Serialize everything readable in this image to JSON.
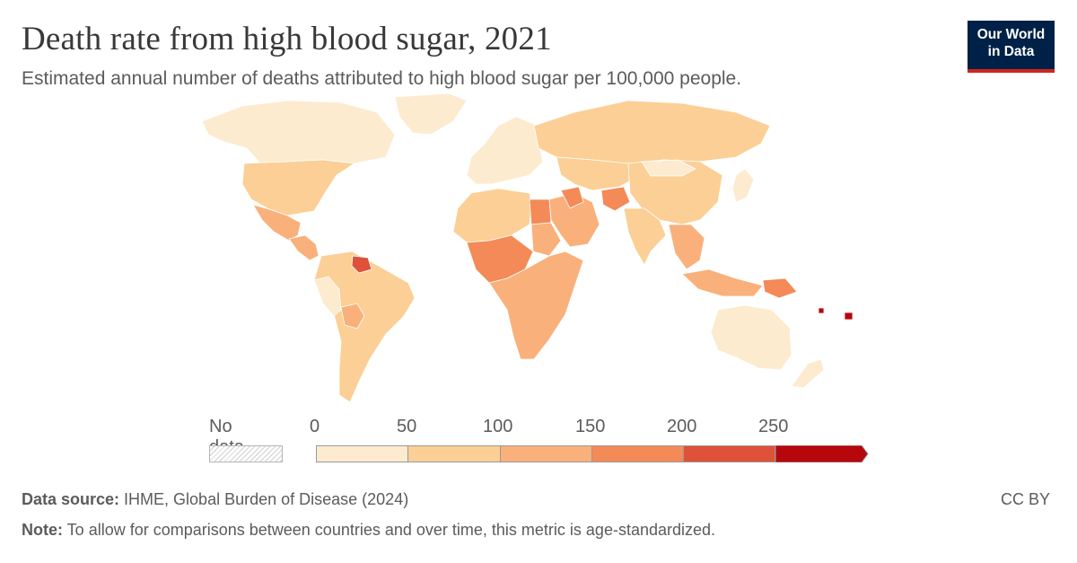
{
  "title": "Death rate from high blood sugar, 2021",
  "subtitle": "Estimated annual number of deaths attributed to high blood sugar per 100,000 people.",
  "logo": {
    "line1": "Our World",
    "line2": "in Data"
  },
  "legend": {
    "no_data_label": "No data",
    "bins": [
      {
        "from": 0,
        "to": 50,
        "color": "#fdebd0"
      },
      {
        "from": 50,
        "to": 100,
        "color": "#fbcf95"
      },
      {
        "from": 100,
        "to": 150,
        "color": "#f9b07b"
      },
      {
        "from": 150,
        "to": 200,
        "color": "#f48a57"
      },
      {
        "from": 200,
        "to": 250,
        "color": "#df5138"
      },
      {
        "from": 250,
        "to": null,
        "color": "#b5070c"
      }
    ],
    "tick_labels": [
      "0",
      "50",
      "100",
      "150",
      "200",
      "250"
    ]
  },
  "map": {
    "regions": [
      {
        "name": "Canada",
        "bin": 0
      },
      {
        "name": "Greenland",
        "bin": 0
      },
      {
        "name": "United States",
        "bin": 1
      },
      {
        "name": "Mexico",
        "bin": 2
      },
      {
        "name": "Central America",
        "bin": 2
      },
      {
        "name": "Guyana",
        "bin": 4
      },
      {
        "name": "South America",
        "bin": 1
      },
      {
        "name": "Peru",
        "bin": 0
      },
      {
        "name": "Bolivia",
        "bin": 2
      },
      {
        "name": "Europe",
        "bin": 0
      },
      {
        "name": "Russia",
        "bin": 1
      },
      {
        "name": "North Africa",
        "bin": 1
      },
      {
        "name": "Egypt",
        "bin": 3
      },
      {
        "name": "Sudan",
        "bin": 2
      },
      {
        "name": "Central Africa",
        "bin": 3
      },
      {
        "name": "Southern Africa",
        "bin": 2
      },
      {
        "name": "Middle East",
        "bin": 2
      },
      {
        "name": "Iraq",
        "bin": 3
      },
      {
        "name": "Afghanistan",
        "bin": 3
      },
      {
        "name": "Central Asia",
        "bin": 1
      },
      {
        "name": "China",
        "bin": 1
      },
      {
        "name": "Mongolia",
        "bin": 0
      },
      {
        "name": "India",
        "bin": 1
      },
      {
        "name": "Southeast Asia",
        "bin": 2
      },
      {
        "name": "Japan",
        "bin": 0
      },
      {
        "name": "Indonesia",
        "bin": 2
      },
      {
        "name": "Papua New Guinea",
        "bin": 3
      },
      {
        "name": "Australia",
        "bin": 0
      },
      {
        "name": "New Zealand",
        "bin": 0
      },
      {
        "name": "Fiji",
        "bin": 5
      }
    ]
  },
  "footer": {
    "source_label": "Data source:",
    "source_text": " IHME, Global Burden of Disease (2024)",
    "note_label": "Note:",
    "note_text": " To allow for comparisons between countries and over time, this metric is age-standardized.",
    "license": "CC BY"
  }
}
